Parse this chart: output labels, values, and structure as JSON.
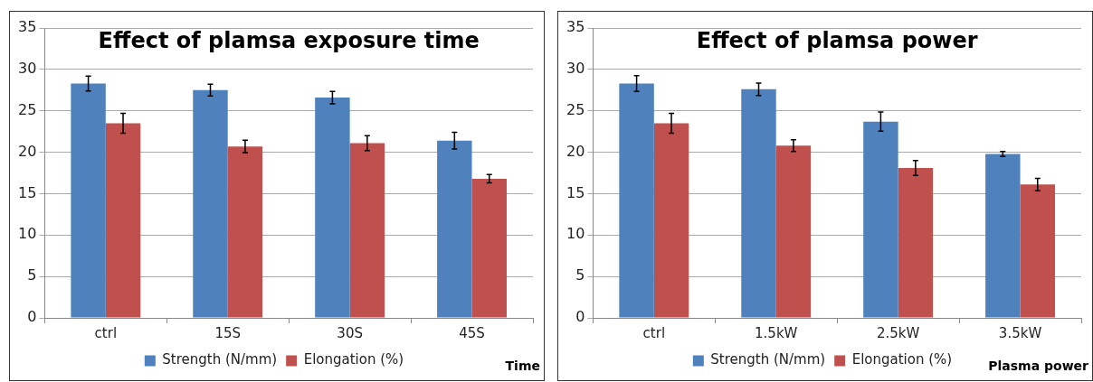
{
  "chart_data": [
    {
      "type": "bar",
      "title": "Effect of plamsa exposure time",
      "xlabel": "Time",
      "categories": [
        "ctrl",
        "15S",
        "30S",
        "45S"
      ],
      "series": [
        {
          "name": "Strength (N/mm)",
          "color": "#4f81bd",
          "values": [
            28.3,
            27.5,
            26.6,
            21.4
          ],
          "errors": [
            0.9,
            0.7,
            0.75,
            1.0
          ]
        },
        {
          "name": "Elongation (%)",
          "color": "#c0504d",
          "values": [
            23.5,
            20.7,
            21.1,
            16.8
          ],
          "errors": [
            1.2,
            0.75,
            0.9,
            0.5
          ]
        }
      ],
      "ylim": [
        0,
        35
      ],
      "yticks": [
        0,
        5,
        10,
        15,
        20,
        25,
        30,
        35
      ],
      "grid": "y",
      "legend": "bottom"
    },
    {
      "type": "bar",
      "title": "Effect of plamsa power",
      "xlabel": "Plasma power",
      "categories": [
        "ctrl",
        "1.5kW",
        "2.5kW",
        "3.5kW"
      ],
      "series": [
        {
          "name": "Strength (N/mm)",
          "color": "#4f81bd",
          "values": [
            28.3,
            27.6,
            23.7,
            19.8
          ],
          "errors": [
            0.95,
            0.75,
            1.15,
            0.3
          ]
        },
        {
          "name": "Elongation (%)",
          "color": "#c0504d",
          "values": [
            23.5,
            20.8,
            18.1,
            16.1
          ],
          "errors": [
            1.2,
            0.7,
            0.9,
            0.75
          ]
        }
      ],
      "ylim": [
        0,
        35
      ],
      "yticks": [
        0,
        5,
        10,
        15,
        20,
        25,
        30,
        35
      ],
      "grid": "y",
      "legend": "bottom"
    }
  ]
}
